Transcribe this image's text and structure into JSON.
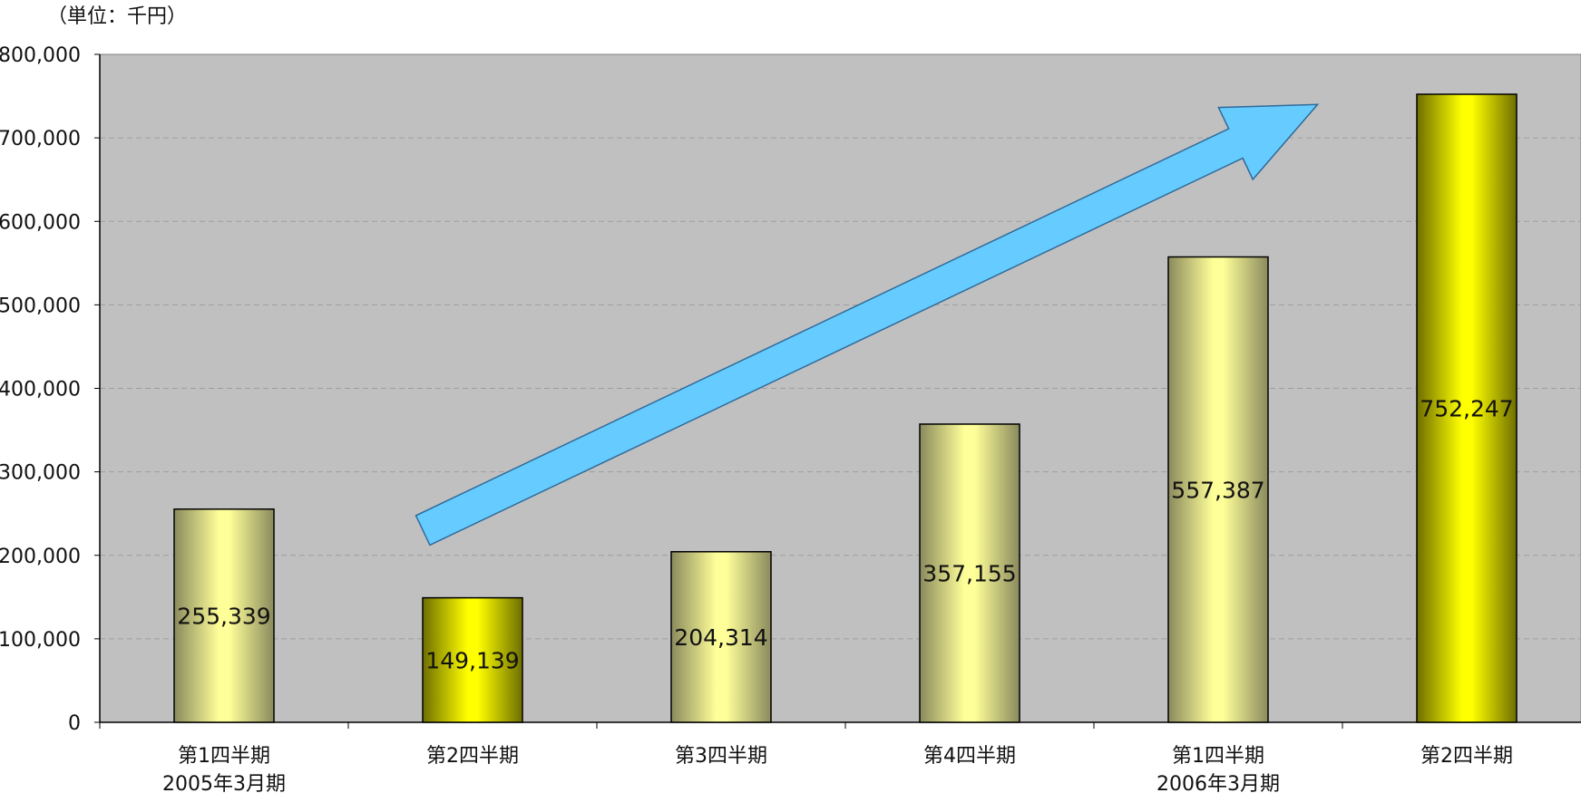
{
  "chart_data": {
    "type": "bar",
    "unit_label": "（単位：千円）",
    "categories": [
      [
        "第1四半期",
        "2005年3月期"
      ],
      [
        "第2四半期"
      ],
      [
        "第3四半期"
      ],
      [
        "第4四半期"
      ],
      [
        "第1四半期",
        "2006年3月期"
      ],
      [
        "第2四半期"
      ]
    ],
    "values": [
      255339,
      149139,
      204314,
      357155,
      557387,
      752247
    ],
    "value_labels": [
      "255,339",
      "149,139",
      "204,314",
      "357,155",
      "557,387",
      "752,247"
    ],
    "ylim": [
      0,
      800000
    ],
    "yticks": [
      0,
      100000,
      200000,
      300000,
      400000,
      500000,
      600000,
      700000,
      800000
    ],
    "ytick_labels": [
      "0",
      "100,000",
      "200,000",
      "300,000",
      "400,000",
      "500,000",
      "600,000",
      "700,000",
      "800,000"
    ],
    "grid": true,
    "legend": "none",
    "annotations": [
      {
        "type": "up-arrow",
        "from_category_index": 1.3,
        "to_category_index": 4.9,
        "from_value": 230000,
        "to_value": 740000
      }
    ],
    "colors": {
      "plot_bg": "#c0c0c0",
      "gridline": "#9e9e9e",
      "bar_pale": "#ffff99",
      "bar_pale_edge": "#8a8a5e",
      "bar_bright": "#ffff00",
      "bar_bright_edge": "#6e6e00",
      "arrow_fill": "#66ccff",
      "arrow_stroke": "#2f6a9a"
    },
    "bar_styles": [
      "pale",
      "bright",
      "pale",
      "pale",
      "pale",
      "bright"
    ]
  }
}
